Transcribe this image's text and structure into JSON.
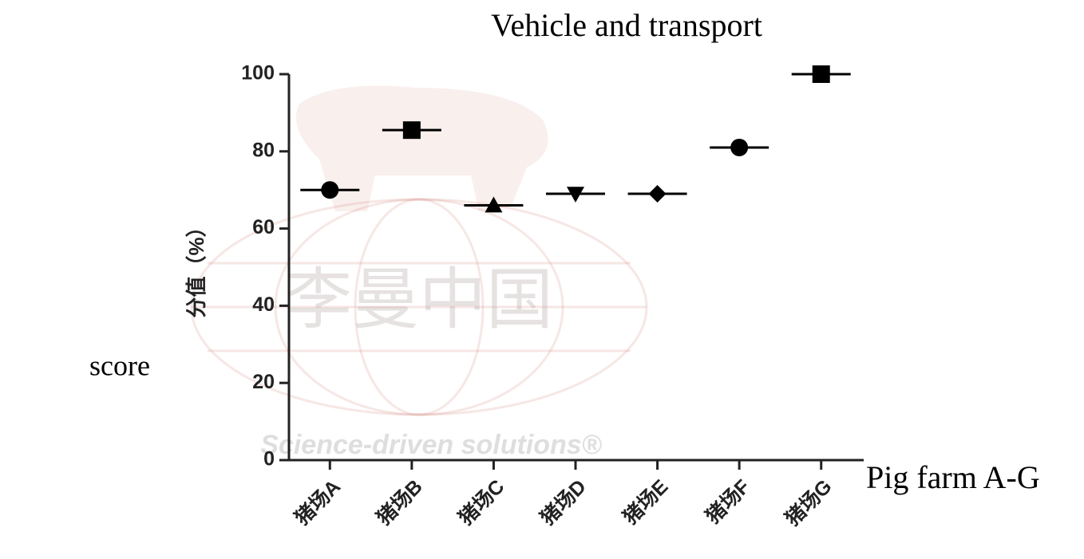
{
  "chart_data": {
    "type": "scatter",
    "title": "Vehicle and transport",
    "y_label": "分值（%）",
    "side_label": "score",
    "x_label": "Pig farm A-G",
    "watermark": [
      "李曼中国",
      "Science-driven solutions®"
    ],
    "categories": [
      "猪场A",
      "猪场B",
      "猪场C",
      "猪场D",
      "猪场E",
      "猪场F",
      "猪场G"
    ],
    "values": [
      70,
      85.5,
      66,
      69,
      69,
      81,
      100
    ],
    "markers": [
      "circle",
      "square",
      "triangle",
      "triangle-down",
      "diamond",
      "circle",
      "square"
    ],
    "color": "#000000",
    "ylim": [
      0,
      100
    ],
    "yticks": [
      0,
      20,
      40,
      60,
      80,
      100
    ],
    "grid": false
  }
}
